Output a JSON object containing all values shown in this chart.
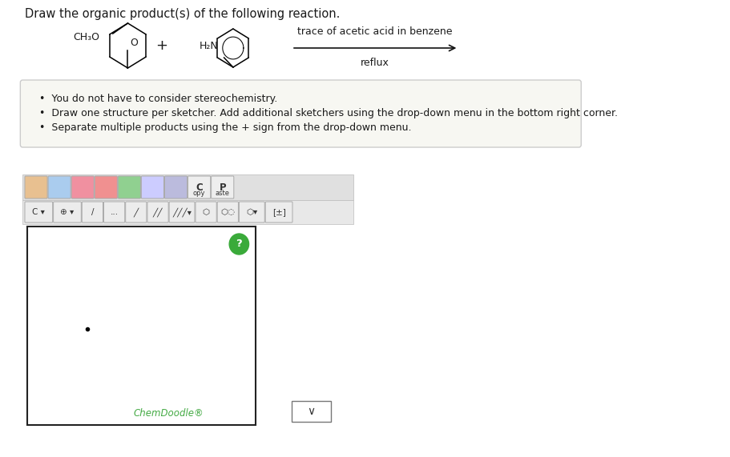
{
  "title": "Draw the organic product(s) of the following reaction.",
  "title_fontsize": 10.5,
  "background_color": "#ffffff",
  "reaction_arrow_text_top": "trace of acetic acid in benzene",
  "reaction_arrow_text_bottom": "reflux",
  "bullet_points": [
    "You do not have to consider stereochemistry.",
    "Draw one structure per sketcher. Add additional sketchers using the drop-down menu in the bottom right corner.",
    "Separate multiple products using the + sign from the drop-down menu."
  ],
  "info_box_facecolor": "#f7f7f2",
  "info_box_edgecolor": "#cccccc",
  "chemdoodle_color": "#44aa44",
  "chemdoodle_text": "ChemDoodle®",
  "font_color": "#1a1a1a",
  "arrow_color": "#111111",
  "toolbar_bg1": "#e8e8e8",
  "toolbar_bg2": "#eeeeee",
  "sketcher_border": "#222222",
  "question_mark_green": "#3aaa3a",
  "icon_border": "#aaaaaa",
  "icon_bg": "#f5f5f5"
}
